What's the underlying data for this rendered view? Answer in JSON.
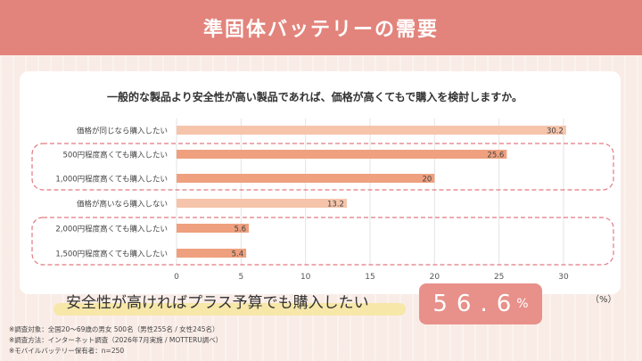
{
  "header": {
    "title": "準固体バッテリーの需要"
  },
  "chart_data": {
    "type": "bar",
    "orientation": "horizontal",
    "title": "一般的な製品より安全性が高い製品であれば、価格が高くてもで購入を検討しますか。",
    "categories": [
      "価格が同じなら購入したい",
      "500円程度高くても購入したい",
      "1,000円程度高くても購入したい",
      "価格が高いなら購入しない",
      "2,000円程度高くても購入したい",
      "1,500円程度高くても購入したい"
    ],
    "values": [
      30.2,
      25.6,
      20,
      13.2,
      5.6,
      5.4
    ],
    "value_labels": [
      "30.2",
      "25.6",
      "20",
      "13.2",
      "5.6",
      "5.4"
    ],
    "xlim": [
      0,
      30
    ],
    "xticks": [
      "0",
      "5",
      "10",
      "15",
      "20",
      "25",
      "30"
    ],
    "unit_label": "（%）",
    "grid": true,
    "bar_colors": [
      "#f5c4ab",
      "#efa07e",
      "#efa07e",
      "#f5c4ab",
      "#efa07e",
      "#efa07e"
    ],
    "highlight_groups": [
      [
        1,
        2
      ],
      [
        4,
        5
      ]
    ]
  },
  "conclusion": {
    "text": "安全性が高ければプラス予算でも購入したい",
    "value": "56.6",
    "unit": "%"
  },
  "notes": [
    "※調査対象：全国20〜69歳の男女 500名（男性255名 / 女性245名）",
    "※調査方法：インターネット調査（2026年7月実施 / MOTTERU調べ）",
    "※モバイルバッテリー保有者：n=250"
  ],
  "colors": {
    "header": "#e2847c",
    "background": "#f9ece6",
    "accent_box": "#e8908a",
    "dash": "#e07a80",
    "highlight_band": "#f7e7a8"
  }
}
